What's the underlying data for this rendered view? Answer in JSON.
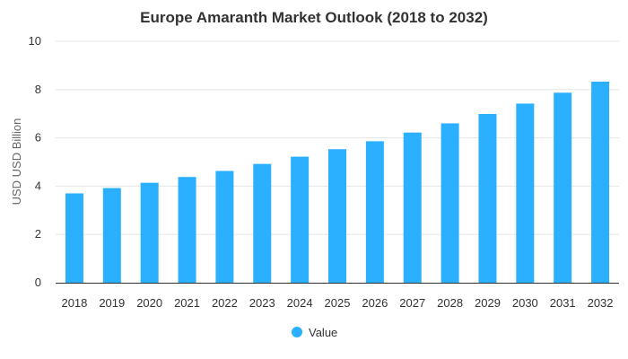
{
  "chart_data": {
    "type": "bar",
    "title": "Europe Amaranth Market Outlook (2018 to 2032)",
    "xlabel": "",
    "ylabel": "USD USD Billion",
    "categories": [
      "2018",
      "2019",
      "2020",
      "2021",
      "2022",
      "2023",
      "2024",
      "2025",
      "2026",
      "2027",
      "2028",
      "2029",
      "2030",
      "2031",
      "2032"
    ],
    "series": [
      {
        "name": "Value",
        "color": "#2bafff",
        "values": [
          3.7,
          3.92,
          4.14,
          4.38,
          4.63,
          4.92,
          5.22,
          5.53,
          5.86,
          6.22,
          6.6,
          6.99,
          7.42,
          7.87,
          8.33
        ]
      }
    ],
    "ylim": [
      0,
      10
    ],
    "yticks": [
      0,
      2,
      4,
      6,
      8,
      10
    ],
    "grid": true,
    "legend_position": "bottom"
  }
}
